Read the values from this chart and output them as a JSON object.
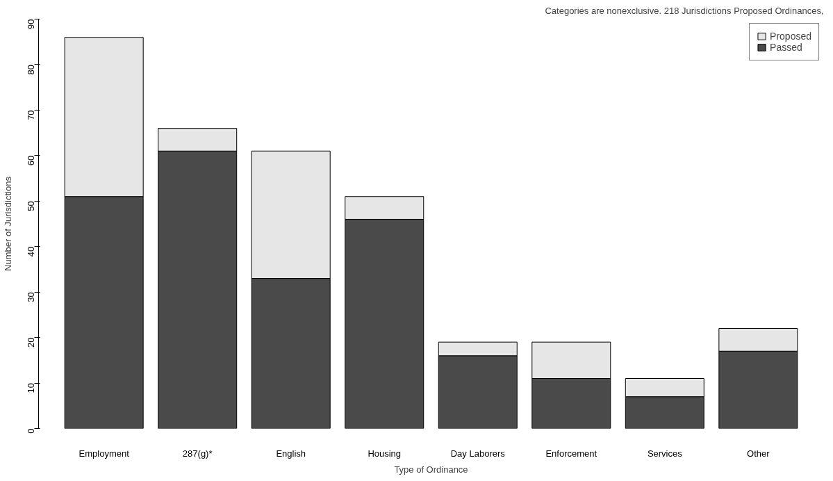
{
  "chart_data": {
    "type": "bar",
    "stacked": true,
    "xlabel": "Type of Ordinance",
    "ylabel": "Number of Jurisdictions",
    "annotations": [
      "Categories are nonexclusive. 218 Jurisdictions Proposed Ordinances,"
    ],
    "categories": [
      "Employment",
      "287(g)*",
      "English",
      "Housing",
      "Day Laborers",
      "Enforcement",
      "Services",
      "Other"
    ],
    "series": [
      {
        "name": "Passed",
        "color": "#4a4a4a",
        "values": [
          51,
          61,
          33,
          46,
          16,
          11,
          7,
          17
        ]
      },
      {
        "name": "Proposed",
        "color": "#e6e6e6",
        "values": [
          35,
          5,
          28,
          5,
          3,
          8,
          4,
          5
        ]
      }
    ],
    "ylim": [
      0,
      90
    ],
    "yticks": [
      0,
      10,
      20,
      30,
      40,
      50,
      60,
      70,
      80,
      90
    ],
    "grid": false,
    "legend": "top right"
  }
}
